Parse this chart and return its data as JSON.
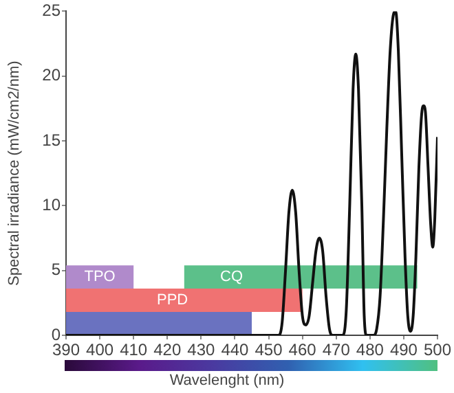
{
  "chart_data": {
    "type": "line",
    "xlabel": "Wavelenght (nm)",
    "ylabel": "Spectral irradiance (mW/cm2/nm)",
    "xlim": [
      390,
      500
    ],
    "xticks": [
      390,
      400,
      410,
      420,
      430,
      440,
      450,
      460,
      470,
      480,
      490,
      500
    ],
    "ylim": [
      0,
      25
    ],
    "yticks": [
      0,
      5,
      10,
      15,
      20,
      25
    ],
    "grid": false,
    "legend": false,
    "marker": "none",
    "line_style": "solid",
    "series": [
      {
        "color": "#111111",
        "x": [
          390,
          453,
          454,
          455,
          456,
          457,
          458,
          459,
          460,
          461,
          462,
          463,
          464,
          465,
          466,
          467,
          468,
          469,
          472,
          473,
          474,
          475,
          475.8,
          476.6,
          477.6,
          478.3,
          479,
          481,
          482,
          483,
          484,
          485,
          486,
          487,
          487.6,
          488.4,
          489.4,
          490.4,
          491.2,
          492,
          492.8,
          493.6,
          494.5,
          495.4,
          495.9,
          496.4,
          497.2,
          498,
          498.6,
          499.2,
          500
        ],
        "values": [
          0,
          0,
          1,
          5,
          9.5,
          11.2,
          9.5,
          5,
          1.5,
          0.8,
          1.5,
          4,
          6.5,
          7.5,
          6.5,
          3,
          0.5,
          0,
          0,
          2,
          10,
          19,
          21.7,
          19,
          10,
          1.5,
          0,
          0,
          0.5,
          3,
          9,
          16,
          22,
          24.8,
          25,
          22,
          14,
          6,
          1.5,
          0.3,
          1.5,
          6,
          13,
          17.3,
          17.7,
          17.3,
          13,
          8.5,
          6.8,
          9,
          15.3
        ]
      }
    ],
    "bands": [
      {
        "axis": "x",
        "from": 390,
        "to": 445,
        "color": "#6a72c0"
      },
      {
        "axis": "x",
        "from": 390,
        "to": 460,
        "label": "PPD",
        "color": "#f07272"
      },
      {
        "axis": "x",
        "from": 390,
        "to": 410,
        "label": "TPO",
        "color": "#b08acb"
      },
      {
        "axis": "x",
        "from": 425,
        "to": 494,
        "label": "CQ",
        "color": "#5cc08a"
      }
    ]
  }
}
